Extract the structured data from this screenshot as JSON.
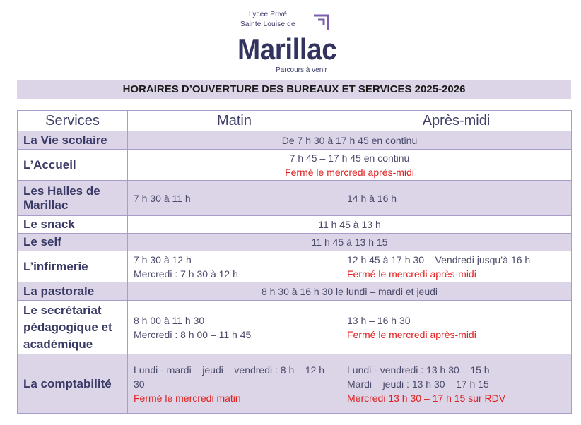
{
  "header": {
    "school_line1": "Lycée Privé",
    "school_line2": "Sainte Louise de",
    "school_name": "Marillac",
    "tagline": "Parcours à venir",
    "brand_color": "#33335f",
    "accent_color": "#7a5fb0"
  },
  "title": "HORAIRES D’OUVERTURE DES BUREAUX ET SERVICES 2025-2026",
  "table": {
    "headers": [
      "Services",
      "Matin",
      "Après-midi"
    ],
    "rows": [
      {
        "service": "La Vie scolaire",
        "merged": [
          "De 7 h 30 à 17 h 45 en continu"
        ]
      },
      {
        "service": "L’Accueil",
        "merged": [
          "7 h 45 – 17 h 45 en  continu"
        ],
        "merged_red": "Fermé le mercredi après-midi"
      },
      {
        "service": "Les Halles de Marillac",
        "matin": [
          "7 h 30 à 11 h"
        ],
        "apres": [
          "14 h à 16 h"
        ]
      },
      {
        "service": "Le snack",
        "merged": [
          "11 h 45 à 13 h"
        ]
      },
      {
        "service": "Le self",
        "merged": [
          "11 h 45 à 13 h 15"
        ]
      },
      {
        "service": "L’infirmerie",
        "matin": [
          "7 h 30 à 12 h",
          "Mercredi : 7 h 30 à 12 h"
        ],
        "apres": [
          "12 h 45 à 17 h 30 – Vendredi jusqu’à 16 h"
        ],
        "apres_red": [
          "Fermé le mercredi après-midi"
        ]
      },
      {
        "service": "La pastorale",
        "merged": [
          "8 h 30 à 16 h 30 le lundi – mardi et jeudi"
        ]
      },
      {
        "service": "Le secrétariat pédagogique et académique",
        "matin": [
          "8 h 00 à 11 h 30",
          "Mercredi : 8 h 00 – 11 h 45"
        ],
        "apres": [
          "13 h – 16 h 30"
        ],
        "apres_red": [
          "Fermé le mercredi après-midi"
        ]
      },
      {
        "service": "La comptabilité",
        "matin": [
          "Lundi - mardi – jeudi – vendredi : 8 h – 12 h 30"
        ],
        "matin_red": [
          "Fermé le mercredi matin"
        ],
        "apres": [
          "Lundi - vendredi : 13 h 30 – 15 h",
          "Mardi – jeudi : 13 h 30 – 17 h 15"
        ],
        "apres_red": [
          "Mercredi 13 h 30 – 17 h 15 sur RDV"
        ]
      }
    ]
  }
}
